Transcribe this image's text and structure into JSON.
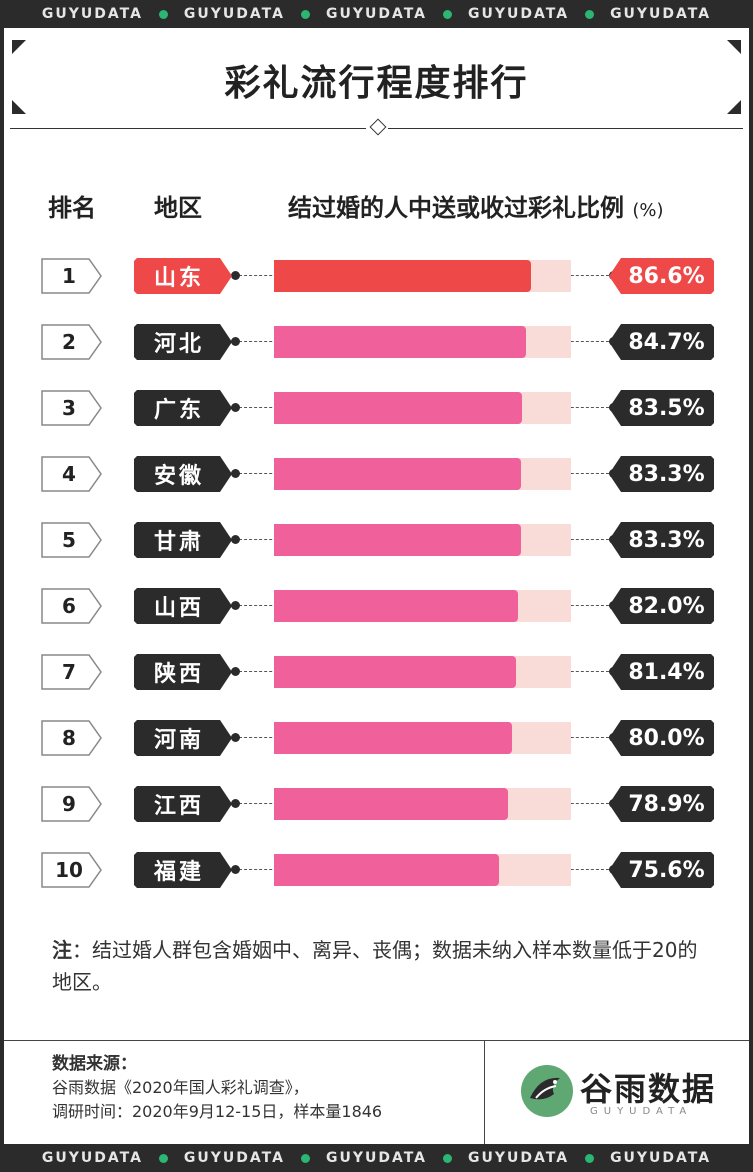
{
  "strip_text": [
    "GUYUDATA",
    "GUYUDATA",
    "GUYUDATA",
    "GUYUDATA",
    "GUYUDATA"
  ],
  "colors": {
    "dark": "#2b2b2b",
    "highlight": "#ef4848",
    "bar": "#f0609a",
    "track": "#f9dcd8",
    "accent_dot": "#2bb673"
  },
  "chart_data": {
    "type": "bar",
    "title": "彩礼流行程度排行",
    "columns": {
      "rank": "排名",
      "region": "地区",
      "metric": "结过婚的人中送或收过彩礼比例",
      "unit": "(%)"
    },
    "xlim": [
      0,
      100
    ],
    "rows": [
      {
        "rank": "1",
        "region": "山东",
        "value": 86.6,
        "label": "86.6%",
        "highlight": true
      },
      {
        "rank": "2",
        "region": "河北",
        "value": 84.7,
        "label": "84.7%",
        "highlight": false
      },
      {
        "rank": "3",
        "region": "广东",
        "value": 83.5,
        "label": "83.5%",
        "highlight": false
      },
      {
        "rank": "4",
        "region": "安徽",
        "value": 83.3,
        "label": "83.3%",
        "highlight": false
      },
      {
        "rank": "5",
        "region": "甘肃",
        "value": 83.3,
        "label": "83.3%",
        "highlight": false
      },
      {
        "rank": "6",
        "region": "山西",
        "value": 82.0,
        "label": "82.0%",
        "highlight": false
      },
      {
        "rank": "7",
        "region": "陕西",
        "value": 81.4,
        "label": "81.4%",
        "highlight": false
      },
      {
        "rank": "8",
        "region": "河南",
        "value": 80.0,
        "label": "80.0%",
        "highlight": false
      },
      {
        "rank": "9",
        "region": "江西",
        "value": 78.9,
        "label": "78.9%",
        "highlight": false
      },
      {
        "rank": "10",
        "region": "福建",
        "value": 75.6,
        "label": "75.6%",
        "highlight": false
      }
    ]
  },
  "note": {
    "label": "注",
    "text": "：结过婚人群包含婚姻中、离异、丧偶；数据未纳入样本数量低于20的地区。"
  },
  "source": {
    "title": "数据来源：",
    "line1": "谷雨数据《2020年国人彩礼调查》，",
    "line2": "调研时间：2020年9月12-15日，样本量1846"
  },
  "logo": {
    "name": "谷雨数据",
    "sub": "GUYUDATA",
    "icon": "guyu-bird-logo-icon"
  }
}
